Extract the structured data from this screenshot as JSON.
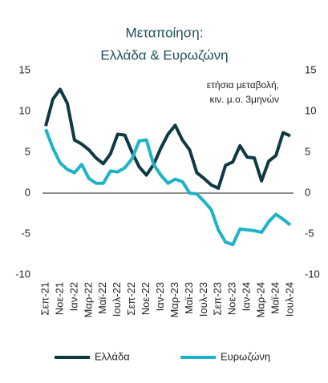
{
  "chart_data": {
    "type": "line",
    "title": [
      "Μεταποίηση:",
      "Ελλάδα & Ευρωζώνη"
    ],
    "annotation": [
      "ετήσια μεταβολή,",
      "κιν. μ.ο. 3μηνών"
    ],
    "categories": [
      "Σεπ-21",
      null,
      "Νοε-21",
      null,
      "Ιαν-22",
      null,
      "Μαρ-22",
      null,
      "Μαϊ-22",
      null,
      "Ιουλ-22",
      null,
      "Σεπ-22",
      null,
      "Νοε-22",
      null,
      "Ιαν-23",
      null,
      "Μαρ-23",
      null,
      "Μαϊ-23",
      null,
      "Ιουλ-23",
      null,
      "Σεπ-23",
      null,
      "Νοε-23",
      null,
      "Ιαν-24",
      null,
      "Μαρ-24",
      null,
      "Μαϊ-24",
      null,
      "Ιουλ-24"
    ],
    "series": [
      {
        "name": "Ελλάδα",
        "color": "#0e3a44",
        "values": [
          8.2,
          11.5,
          12.7,
          11,
          6.5,
          6,
          5.3,
          4.3,
          3.6,
          4.8,
          7.2,
          7.1,
          5,
          3.2,
          2.2,
          3.5,
          5.5,
          7.2,
          8.3,
          6.5,
          5.3,
          2.5,
          1.8,
          1,
          0.6,
          3.4,
          3.8,
          5.8,
          4.4,
          4.3,
          1.5,
          3.9,
          4.6,
          7.4,
          7.0
        ]
      },
      {
        "name": "Ευρωζώνη",
        "color": "#1eb3c6",
        "values": [
          7.8,
          5.5,
          3.7,
          2.9,
          2.5,
          3.5,
          1.8,
          1.2,
          1.2,
          2.7,
          2.6,
          3.1,
          4.2,
          6.4,
          6.5,
          3.5,
          2.2,
          1.2,
          1.7,
          1.4,
          0,
          -0.1,
          -1,
          -2,
          -4.5,
          -6,
          -6.3,
          -4.4,
          -4.5,
          -4.6,
          -4.8,
          -3.5,
          -2.6,
          -3.2,
          -3.9
        ]
      }
    ],
    "ylim": [
      -10,
      15
    ],
    "yticks": [
      -10,
      -5,
      0,
      5,
      10,
      15
    ],
    "y2lim": [
      -10,
      15
    ],
    "y2ticks": [
      -10,
      -5,
      0,
      5,
      10,
      15
    ]
  }
}
